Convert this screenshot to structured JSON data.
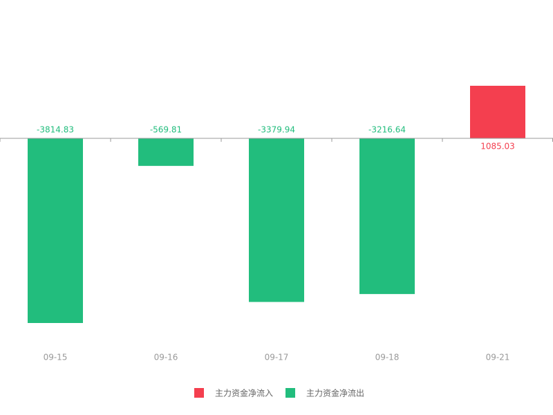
{
  "chart_data": {
    "type": "bar",
    "categories": [
      "09-15",
      "09-16",
      "09-17",
      "09-18",
      "09-21"
    ],
    "values": [
      -3814.83,
      -569.81,
      -3379.94,
      -3216.64,
      1085.03
    ],
    "legend": [
      {
        "name": "主力资金净流入",
        "color": "#f43f4f"
      },
      {
        "name": "主力资金净流出",
        "color": "#22bd7d"
      }
    ]
  }
}
